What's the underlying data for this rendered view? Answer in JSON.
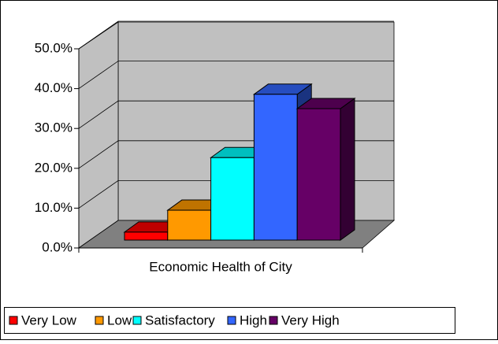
{
  "chart_data": {
    "type": "bar3d",
    "categories": [
      "Economic Health of City"
    ],
    "series": [
      {
        "name": "Very Low",
        "color": "#ff0000",
        "values": [
          2
        ]
      },
      {
        "name": "Low",
        "color": "#ff9900",
        "values": [
          7.5
        ]
      },
      {
        "name": "Satisfactory",
        "color": "#00ffff",
        "values": [
          20.7
        ]
      },
      {
        "name": "High",
        "color": "#3366ff",
        "values": [
          36.6
        ]
      },
      {
        "name": "Very High",
        "color": "#660066",
        "values": [
          33
        ]
      }
    ],
    "ylim": [
      0,
      50
    ],
    "yticks": [
      {
        "value": 0,
        "label": "0.0%"
      },
      {
        "value": 10,
        "label": "10.0%"
      },
      {
        "value": 20,
        "label": "20.0%"
      },
      {
        "value": 30,
        "label": "30.0%"
      },
      {
        "value": 40,
        "label": "40.0%"
      },
      {
        "value": 50,
        "label": "50.0%"
      }
    ],
    "grid": true,
    "legend": "bottom"
  }
}
